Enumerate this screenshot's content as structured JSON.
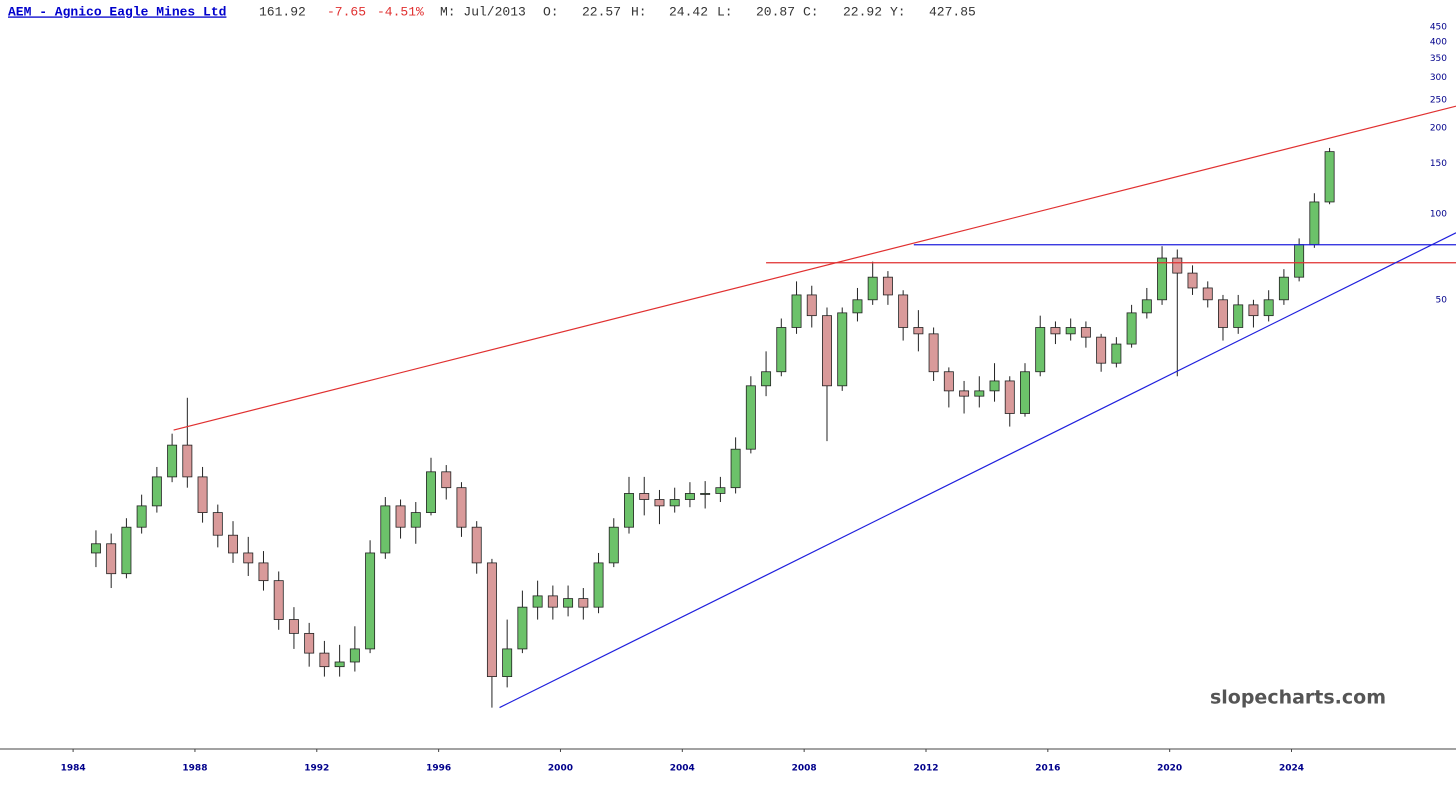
{
  "chart_data": {
    "type": "candlestick",
    "title": "AEM - Agnico Eagle Mines Ltd",
    "last_price": "161.92",
    "change": "-7.65",
    "change_pct": "-4.51%",
    "period": "M: Jul/2013",
    "ohlc_labels": [
      "O:",
      "H:",
      "L:",
      "C:",
      "Y:"
    ],
    "ohlc_values": [
      "22.57",
      "24.42",
      "20.87",
      "22.92",
      "427.85"
    ],
    "watermark": "slopecharts.com",
    "log_scale": true,
    "up_color": "#6cc26a",
    "down_color": "#d99a9a",
    "change_color": "#e03030",
    "title_color": "#0000cc",
    "xlim": [
      1981.6,
      2029.4
    ],
    "ylim": [
      1.35,
      560
    ],
    "xticks": [
      1984,
      1988,
      1992,
      1996,
      2000,
      2004,
      2008,
      2012,
      2016,
      2020,
      2024
    ],
    "yticks": [
      50,
      100,
      150,
      200,
      250,
      300,
      350,
      400,
      450
    ],
    "x": [
      1984.75,
      1985.25,
      1985.75,
      1986.25,
      1986.75,
      1987.25,
      1987.75,
      1988.25,
      1988.75,
      1989.25,
      1989.75,
      1990.25,
      1990.75,
      1991.25,
      1991.75,
      1992.25,
      1992.75,
      1993.25,
      1993.75,
      1994.25,
      1994.75,
      1995.25,
      1995.75,
      1996.25,
      1996.75,
      1997.25,
      1997.75,
      1998.25,
      1998.75,
      1999.25,
      1999.75,
      2000.25,
      2000.75,
      2001.25,
      2001.75,
      2002.25,
      2002.75,
      2003.25,
      2003.75,
      2004.25,
      2004.75,
      2005.25,
      2005.75,
      2006.25,
      2006.75,
      2007.25,
      2007.75,
      2008.25,
      2008.75,
      2009.25,
      2009.75,
      2010.25,
      2010.75,
      2011.25,
      2011.75,
      2012.25,
      2012.75,
      2013.25,
      2013.75,
      2014.25,
      2014.75,
      2015.25,
      2015.75,
      2016.25,
      2016.75,
      2017.25,
      2017.75,
      2018.25,
      2018.75,
      2019.25,
      2019.75,
      2020.25,
      2020.75,
      2021.25,
      2021.75,
      2022.25,
      2022.75,
      2023.25,
      2023.75,
      2024.25,
      2024.75,
      2025.25
    ],
    "open": [
      6.5,
      7.0,
      5.5,
      8.0,
      9.5,
      12.0,
      15.5,
      12.0,
      9.0,
      7.5,
      6.5,
      6.0,
      5.2,
      3.8,
      3.4,
      2.9,
      2.6,
      2.7,
      3.0,
      6.5,
      9.5,
      8.0,
      9.0,
      12.5,
      11.0,
      8.0,
      6.0,
      2.4,
      3.0,
      4.2,
      4.6,
      4.2,
      4.5,
      4.2,
      6.0,
      8.0,
      10.5,
      10.0,
      9.5,
      10.0,
      10.5,
      10.5,
      11.0,
      15.0,
      25.0,
      28.0,
      40.0,
      52.0,
      44.0,
      25.0,
      45.0,
      50.0,
      60.0,
      52.0,
      40.0,
      38.0,
      28.0,
      24.0,
      23.0,
      24.0,
      26.0,
      20.0,
      28.0,
      40.0,
      38.0,
      40.0,
      37.0,
      30.0,
      35.0,
      45.0,
      50.0,
      70.0,
      62.0,
      55.0,
      50.0,
      40.0,
      48.0,
      44.0,
      50.0,
      60.0,
      78.0,
      110.0
    ],
    "high": [
      7.8,
      7.6,
      8.6,
      10.4,
      13.0,
      17.0,
      22.7,
      13.0,
      9.6,
      8.4,
      7.4,
      6.6,
      5.6,
      4.2,
      3.7,
      3.2,
      3.1,
      3.6,
      7.2,
      10.2,
      10.0,
      9.8,
      14.0,
      13.2,
      11.5,
      8.4,
      6.2,
      3.8,
      4.8,
      5.2,
      5.0,
      5.0,
      4.9,
      6.5,
      8.6,
      12.0,
      12.0,
      10.8,
      11.0,
      11.5,
      11.6,
      12.0,
      16.5,
      27.0,
      33.0,
      43.0,
      58.0,
      56.0,
      47.0,
      47.0,
      55.0,
      68.0,
      63.0,
      54.0,
      46.0,
      40.0,
      29.0,
      26.0,
      27.0,
      30.0,
      27.0,
      30.0,
      44.0,
      42.0,
      43.0,
      42.0,
      38.0,
      37.0,
      48.0,
      55.0,
      77.0,
      75.0,
      66.0,
      58.0,
      52.0,
      52.0,
      50.0,
      54.0,
      64.0,
      82.0,
      118.0,
      170.0
    ],
    "low": [
      5.8,
      4.9,
      5.3,
      7.6,
      9.0,
      11.5,
      11.0,
      8.3,
      6.8,
      6.0,
      5.4,
      4.8,
      3.5,
      3.0,
      2.6,
      2.4,
      2.4,
      2.5,
      2.9,
      6.2,
      7.3,
      7.0,
      8.8,
      10.0,
      7.4,
      5.5,
      1.87,
      2.2,
      2.9,
      3.8,
      3.8,
      3.9,
      3.8,
      4.0,
      5.8,
      7.6,
      8.8,
      8.2,
      9.0,
      9.4,
      9.3,
      9.8,
      10.5,
      14.5,
      23.0,
      27.0,
      38.0,
      40.0,
      16.0,
      24.0,
      42.0,
      48.0,
      48.0,
      36.0,
      33.0,
      26.0,
      21.0,
      20.0,
      21.0,
      22.0,
      18.0,
      19.5,
      27.0,
      35.0,
      36.0,
      34.0,
      28.0,
      29.0,
      34.0,
      43.0,
      48.0,
      27.0,
      52.0,
      47.0,
      36.0,
      38.0,
      40.0,
      42.0,
      48.0,
      58.0,
      76.0,
      108.0
    ],
    "close": [
      7.0,
      5.5,
      8.0,
      9.5,
      12.0,
      15.5,
      12.0,
      9.0,
      7.5,
      6.5,
      6.0,
      5.2,
      3.8,
      3.4,
      2.9,
      2.6,
      2.7,
      3.0,
      6.5,
      9.5,
      8.0,
      9.0,
      12.5,
      11.0,
      8.0,
      6.0,
      2.4,
      3.0,
      4.2,
      4.6,
      4.2,
      4.5,
      4.2,
      6.0,
      8.0,
      10.5,
      10.0,
      9.5,
      10.0,
      10.5,
      10.5,
      11.0,
      15.0,
      25.0,
      28.0,
      40.0,
      52.0,
      44.0,
      25.0,
      45.0,
      50.0,
      60.0,
      52.0,
      40.0,
      38.0,
      28.0,
      24.0,
      23.0,
      24.0,
      26.0,
      20.0,
      28.0,
      40.0,
      38.0,
      40.0,
      37.0,
      30.0,
      35.0,
      45.0,
      50.0,
      70.0,
      62.0,
      55.0,
      50.0,
      40.0,
      48.0,
      44.0,
      50.0,
      60.0,
      78.0,
      110.0,
      165.0
    ],
    "lines": [
      {
        "color": "#e03030",
        "points": [
          [
            1987.3,
            17.5
          ],
          [
            2029.4,
            238
          ]
        ]
      },
      {
        "color": "#e03030",
        "points": [
          [
            2006.75,
            67.4
          ],
          [
            2029.4,
            67.4
          ]
        ]
      },
      {
        "color": "#2020dd",
        "points": [
          [
            2011.6,
            77.9
          ],
          [
            2029.4,
            77.9
          ]
        ]
      },
      {
        "color": "#2020dd",
        "points": [
          [
            1998.0,
            1.87
          ],
          [
            2029.4,
            85.8
          ]
        ]
      }
    ]
  }
}
